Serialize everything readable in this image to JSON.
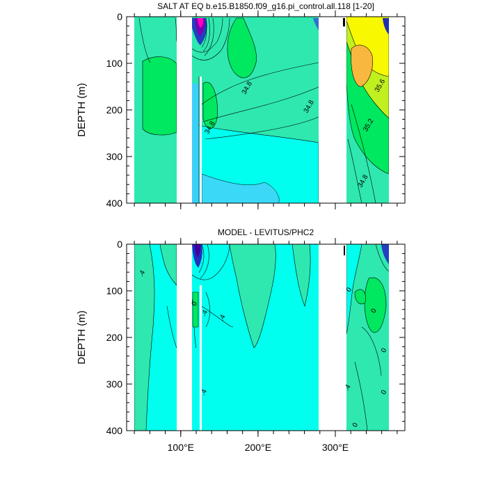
{
  "chart_data": [
    {
      "type": "contour",
      "title": "SALT AT EQ b.e15.B1850.f09_g16.pi_control.all.118 [1-20]",
      "ylabel": "DEPTH (m)",
      "ylim": [
        0,
        400
      ],
      "xlim": [
        30,
        390
      ],
      "y_ticks": [
        0,
        100,
        200,
        300,
        400
      ],
      "x_ticks": [
        100,
        200,
        300
      ],
      "x_tick_labels": [
        "",
        "",
        ""
      ],
      "contour_labels": [
        {
          "text": "34.8",
          "lon": 188,
          "depth": 155
        },
        {
          "text": "34.8",
          "lon": 268,
          "depth": 195
        },
        {
          "text": "34.8",
          "lon": 140,
          "depth": 240
        },
        {
          "text": "35.6",
          "lon": 360,
          "depth": 150
        },
        {
          "text": "35.2",
          "lon": 345,
          "depth": 235
        },
        {
          "text": "34.8",
          "lon": 338,
          "depth": 355
        }
      ]
    },
    {
      "type": "contour",
      "title": "MODEL - LEVITUS/PHC2",
      "ylabel": "DEPTH (m)",
      "ylim": [
        0,
        400
      ],
      "xlim": [
        30,
        390
      ],
      "y_ticks": [
        0,
        100,
        200,
        300,
        400
      ],
      "x_ticks": [
        100,
        200,
        300
      ],
      "x_tick_labels": [
        "100°E",
        "200°E",
        "300°E"
      ],
      "contour_labels": [
        {
          "text": ".4",
          "lon": 52,
          "depth": 65
        },
        {
          "text": "0",
          "lon": 120,
          "depth": 130
        },
        {
          "text": ".4",
          "lon": 133,
          "depth": 150
        },
        {
          "text": ".4",
          "lon": 156,
          "depth": 160
        },
        {
          "text": ".4",
          "lon": 132,
          "depth": 320
        },
        {
          "text": "0",
          "lon": 320,
          "depth": 100
        },
        {
          "text": "0",
          "lon": 352,
          "depth": 145
        },
        {
          "text": "0",
          "lon": 365,
          "depth": 230
        },
        {
          "text": "0",
          "lon": 365,
          "depth": 320
        },
        {
          "text": ".4",
          "lon": 318,
          "depth": 310
        },
        {
          "text": "0",
          "lon": 328,
          "depth": 390
        }
      ]
    }
  ]
}
